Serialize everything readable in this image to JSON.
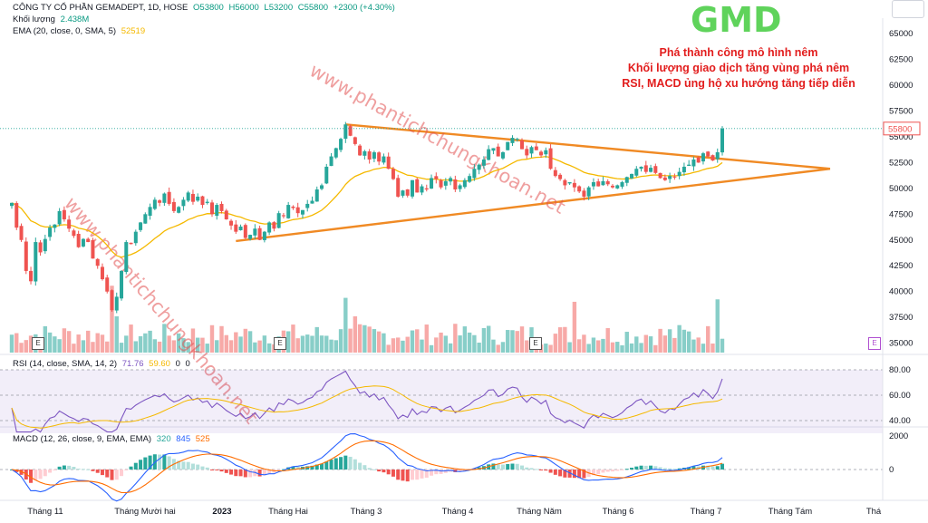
{
  "header": {
    "symbol_line": "CÔNG TY CỔ PHẦN GEMADEPT, 1D, HOSE",
    "open": "O53800",
    "high": "H56000",
    "low": "L53200",
    "close": "C55800",
    "change": "+2300 (+4.30%)",
    "volume_label": "Khối lượng",
    "volume_value": "2.438M",
    "ema_label": "EMA (20, close, 0, SMA, 5)",
    "ema_value": "52519"
  },
  "annotation": {
    "ticker": "GMD",
    "lines": [
      "Phá thành công mô hình nêm",
      "Khối lượng giao dịch tăng vùng phá nêm",
      "RSI, MACD ủng hộ xu hướng tăng tiếp diễn"
    ],
    "watermark": "www.phantichchungkhoan.net"
  },
  "rsi_header": {
    "label": "RSI (14, close, SMA, 14, 2)",
    "rsi": "71.76",
    "sma": "59.60",
    "z1": "0",
    "z2": "0"
  },
  "macd_header": {
    "label": "MACD (12, 26, close, 9, EMA, EMA)",
    "hist": "320",
    "macd": "845",
    "signal": "525"
  },
  "earnings_marker": "E",
  "colors": {
    "up": "#26a69a",
    "down": "#ef5350",
    "ema": "#f5b900",
    "trendline": "#f08a24",
    "rsi": "#7e57c2",
    "macd": "#2962ff",
    "signal": "#ff6d00",
    "title": "#5fd35b",
    "note": "#e21d1d"
  },
  "chart_data": [
    {
      "type": "candlestick",
      "title": "GMD",
      "y_axis": {
        "ticks": [
          35000,
          37500,
          40000,
          42500,
          45000,
          47500,
          50000,
          52500,
          55000,
          57500,
          60000,
          62500,
          65000
        ],
        "ylim": [
          34000,
          66500
        ],
        "last_price": 55800
      },
      "x_axis": {
        "ticks": [
          "Tháng 11",
          "Tháng Mười hai",
          "2023",
          "Tháng Hai",
          "Tháng 3",
          "Tháng 4",
          "Tháng Năm",
          "Tháng 6",
          "Tháng 7",
          "Tháng Tám",
          "Thá"
        ]
      },
      "close": [
        48600,
        46200,
        45000,
        42000,
        41000,
        44800,
        43800,
        45100,
        46200,
        46500,
        47800,
        47000,
        46100,
        45400,
        44300,
        45100,
        44800,
        43200,
        42500,
        41200,
        40000,
        38200,
        39500,
        42000,
        44800,
        44600,
        45800,
        46700,
        47500,
        48200,
        48900,
        48600,
        49500,
        48500,
        47800,
        48200,
        48900,
        49600,
        48700,
        49200,
        48400,
        48700,
        47500,
        48400,
        47800,
        47000,
        46400,
        45800,
        46300,
        45200,
        45500,
        46100,
        45000,
        45800,
        46700,
        46100,
        47600,
        47300,
        48400,
        48100,
        47600,
        47900,
        48500,
        48800,
        49900,
        50300,
        52100,
        53100,
        53900,
        54800,
        56200,
        55100,
        54300,
        53200,
        53600,
        52800,
        53500,
        52600,
        53100,
        51900,
        50900,
        49200,
        49800,
        49300,
        50800,
        49600,
        50200,
        49900,
        51000,
        50900,
        50100,
        50700,
        51000,
        49900,
        50300,
        50800,
        51200,
        51900,
        52300,
        52800,
        53800,
        53900,
        53100,
        53500,
        54500,
        54900,
        54800,
        53800,
        53200,
        54000,
        53700,
        53200,
        53700,
        51900,
        51200,
        50900,
        50300,
        50600,
        50100,
        49700,
        49200,
        50100,
        50600,
        50200,
        50700,
        50400,
        50100,
        50300,
        50600,
        51100,
        51400,
        51900,
        52100,
        51600,
        52000,
        51500,
        51000,
        50800,
        51200,
        51100,
        51600,
        52100,
        52300,
        52800,
        52500,
        53400,
        53100,
        52700,
        53500,
        55800
      ]
    },
    {
      "type": "line",
      "name": "RSI",
      "levels": [
        40,
        60,
        80
      ],
      "value": 71.76,
      "sma": 59.6
    },
    {
      "type": "bar",
      "name": "MACD",
      "ticks": [
        0,
        2000
      ],
      "hist": 320,
      "macd": 845,
      "signal": 525
    }
  ]
}
